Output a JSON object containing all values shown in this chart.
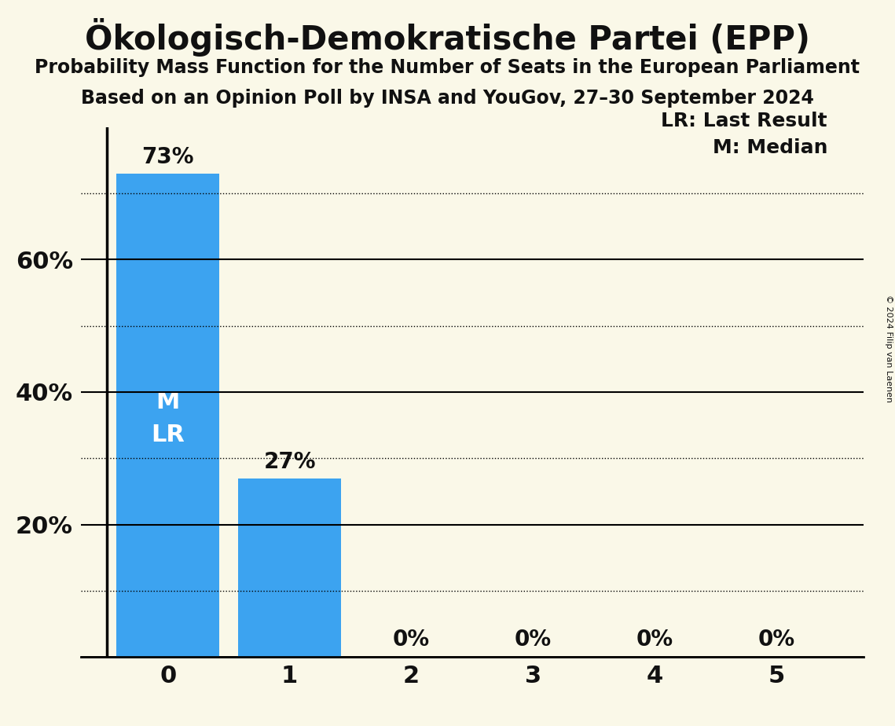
{
  "title": "Ökologisch-Demokratische Partei (EPP)",
  "subtitle1": "Probability Mass Function for the Number of Seats in the European Parliament",
  "subtitle2": "Based on an Opinion Poll by INSA and YouGov, 27–30 September 2024",
  "copyright": "© 2024 Filip van Laenen",
  "categories": [
    0,
    1,
    2,
    3,
    4,
    5
  ],
  "values": [
    0.73,
    0.27,
    0.0,
    0.0,
    0.0,
    0.0
  ],
  "bar_color": "#3ca3f0",
  "background_color": "#faf8e8",
  "text_color": "#111111",
  "bar_label_color_inside": "#ffffff",
  "bar_label_color_outside": "#111111",
  "median_seat": 0,
  "last_result_seat": 0,
  "ylim": [
    0,
    0.8
  ],
  "yticks": [
    0.0,
    0.2,
    0.4,
    0.6
  ],
  "ytick_labels": [
    "",
    "20%",
    "40%",
    "60%"
  ],
  "legend_lr": "LR: Last Result",
  "legend_m": "M: Median",
  "solid_grid_lines": [
    0.2,
    0.4,
    0.6
  ],
  "dotted_grid_lines": [
    0.1,
    0.3,
    0.5,
    0.7
  ],
  "bar_width": 0.85
}
